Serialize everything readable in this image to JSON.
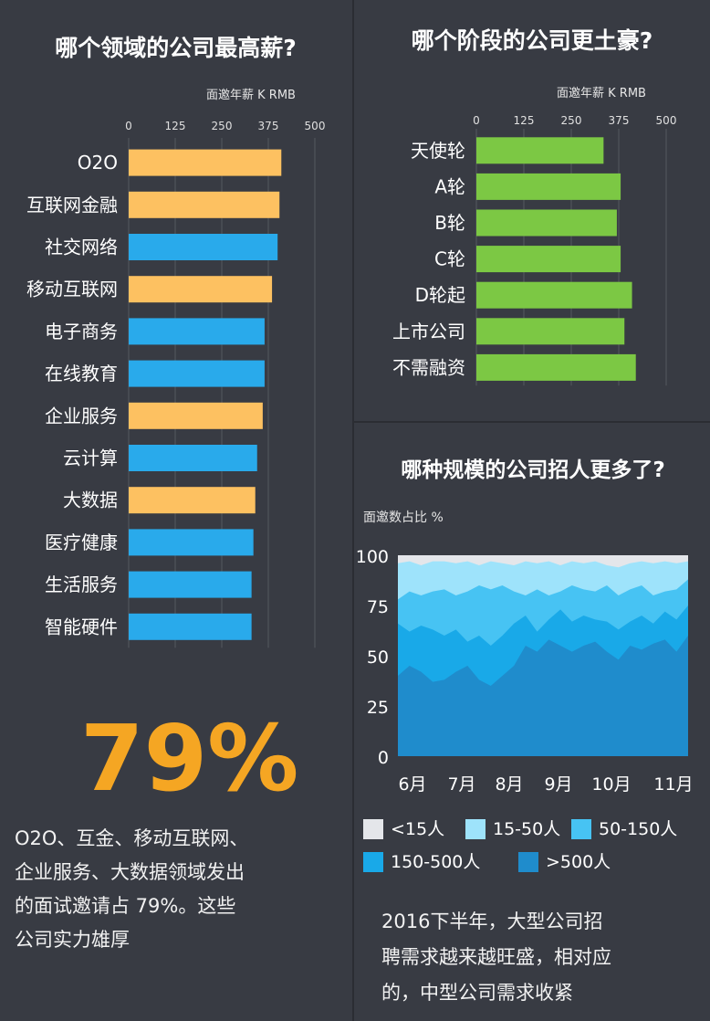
{
  "chart_data": [
    {
      "type": "bar",
      "orientation": "horizontal",
      "title": "哪个领域的公司最高薪?",
      "unit_label": "面邀年薪 K RMB",
      "xlim": [
        0,
        500
      ],
      "ticks": [
        "0",
        "125",
        "250",
        "375",
        "500"
      ],
      "categories": [
        "O2O",
        "互联网金融",
        "社交网络",
        "移动互联网",
        "电子商务",
        "在线教育",
        "企业服务",
        "云计算",
        "大数据",
        "医疗健康",
        "生活服务",
        "智能硬件"
      ],
      "values": [
        410,
        405,
        400,
        385,
        365,
        365,
        360,
        345,
        340,
        335,
        330,
        330
      ],
      "highlight": [
        true,
        true,
        false,
        true,
        false,
        false,
        true,
        false,
        true,
        false,
        false,
        false
      ],
      "grid": true
    },
    {
      "type": "bar",
      "orientation": "horizontal",
      "title": "哪个阶段的公司更土豪?",
      "unit_label": "面邀年薪 K RMB",
      "xlim": [
        0,
        500
      ],
      "ticks": [
        "0",
        "125",
        "250",
        "375",
        "500"
      ],
      "categories": [
        "天使轮",
        "A轮",
        "B轮",
        "C轮",
        "D轮起",
        "上市公司",
        "不需融资"
      ],
      "values": [
        335,
        380,
        370,
        380,
        410,
        390,
        420
      ],
      "grid": true
    },
    {
      "type": "area",
      "stacked": true,
      "title": "哪种规模的公司招人更多了?",
      "ylabel": "面邀数占比 %",
      "ylim": [
        0,
        100
      ],
      "yticks": [
        "100",
        "75",
        "50",
        "25",
        "0"
      ],
      "xticks": [
        "6月",
        "7月",
        "8月",
        "9月",
        "10月",
        "11月"
      ],
      "x": [
        0,
        1,
        2,
        3,
        4,
        5,
        6,
        7,
        8,
        9,
        10,
        11,
        12,
        13,
        14,
        15,
        16,
        17,
        18,
        19,
        20,
        21,
        22,
        23,
        24,
        25
      ],
      "series": [
        {
          "name": ">500人",
          "values": [
            40,
            45,
            42,
            37,
            38,
            42,
            45,
            38,
            35,
            40,
            45,
            55,
            52,
            58,
            55,
            52,
            55,
            57,
            52,
            48,
            55,
            53,
            56,
            58,
            52,
            60
          ]
        },
        {
          "name": "150-500人",
          "values": [
            66,
            62,
            65,
            63,
            60,
            63,
            57,
            60,
            55,
            60,
            66,
            70,
            62,
            68,
            73,
            67,
            70,
            68,
            67,
            63,
            67,
            70,
            66,
            72,
            68,
            75
          ]
        },
        {
          "name": "50-150人",
          "values": [
            78,
            82,
            80,
            82,
            83,
            80,
            82,
            85,
            83,
            85,
            82,
            80,
            83,
            80,
            82,
            85,
            83,
            82,
            85,
            80,
            83,
            85,
            80,
            82,
            83,
            88
          ]
        },
        {
          "name": "15-50人",
          "values": [
            96,
            97,
            95,
            97,
            97,
            96,
            97,
            95,
            97,
            96,
            95,
            97,
            96,
            97,
            95,
            97,
            96,
            97,
            95,
            94,
            96,
            97,
            96,
            97,
            96,
            97
          ]
        },
        {
          "name": "<15人",
          "values": [
            100,
            100,
            100,
            100,
            100,
            100,
            100,
            100,
            100,
            100,
            100,
            100,
            100,
            100,
            100,
            100,
            100,
            100,
            100,
            100,
            100,
            100,
            100,
            100,
            100,
            100
          ]
        }
      ],
      "legend": [
        "<15人",
        "15-50人",
        "50-150人",
        "150-500人",
        ">500人"
      ],
      "colors": [
        "#e4e6ea",
        "#9ee3fb",
        "#47c3f3",
        "#19a9e8",
        "#1f8ccc"
      ]
    }
  ],
  "colors": {
    "orange": "#fdc161",
    "blue": "#29aaeb",
    "green": "#7cc844",
    "big_number": "#f5a623"
  },
  "callout": {
    "big_number": "79%",
    "text_lines": [
      "O2O、互金、移动互联网、",
      "企业服务、大数据领域发出",
      "的面试邀请占 79%。这些",
      "公司实力雄厚"
    ]
  },
  "note": {
    "text_lines": [
      "2016下半年，大型公司招",
      "聘需求越来越旺盛，相对应",
      "的，中型公司需求收紧"
    ]
  }
}
